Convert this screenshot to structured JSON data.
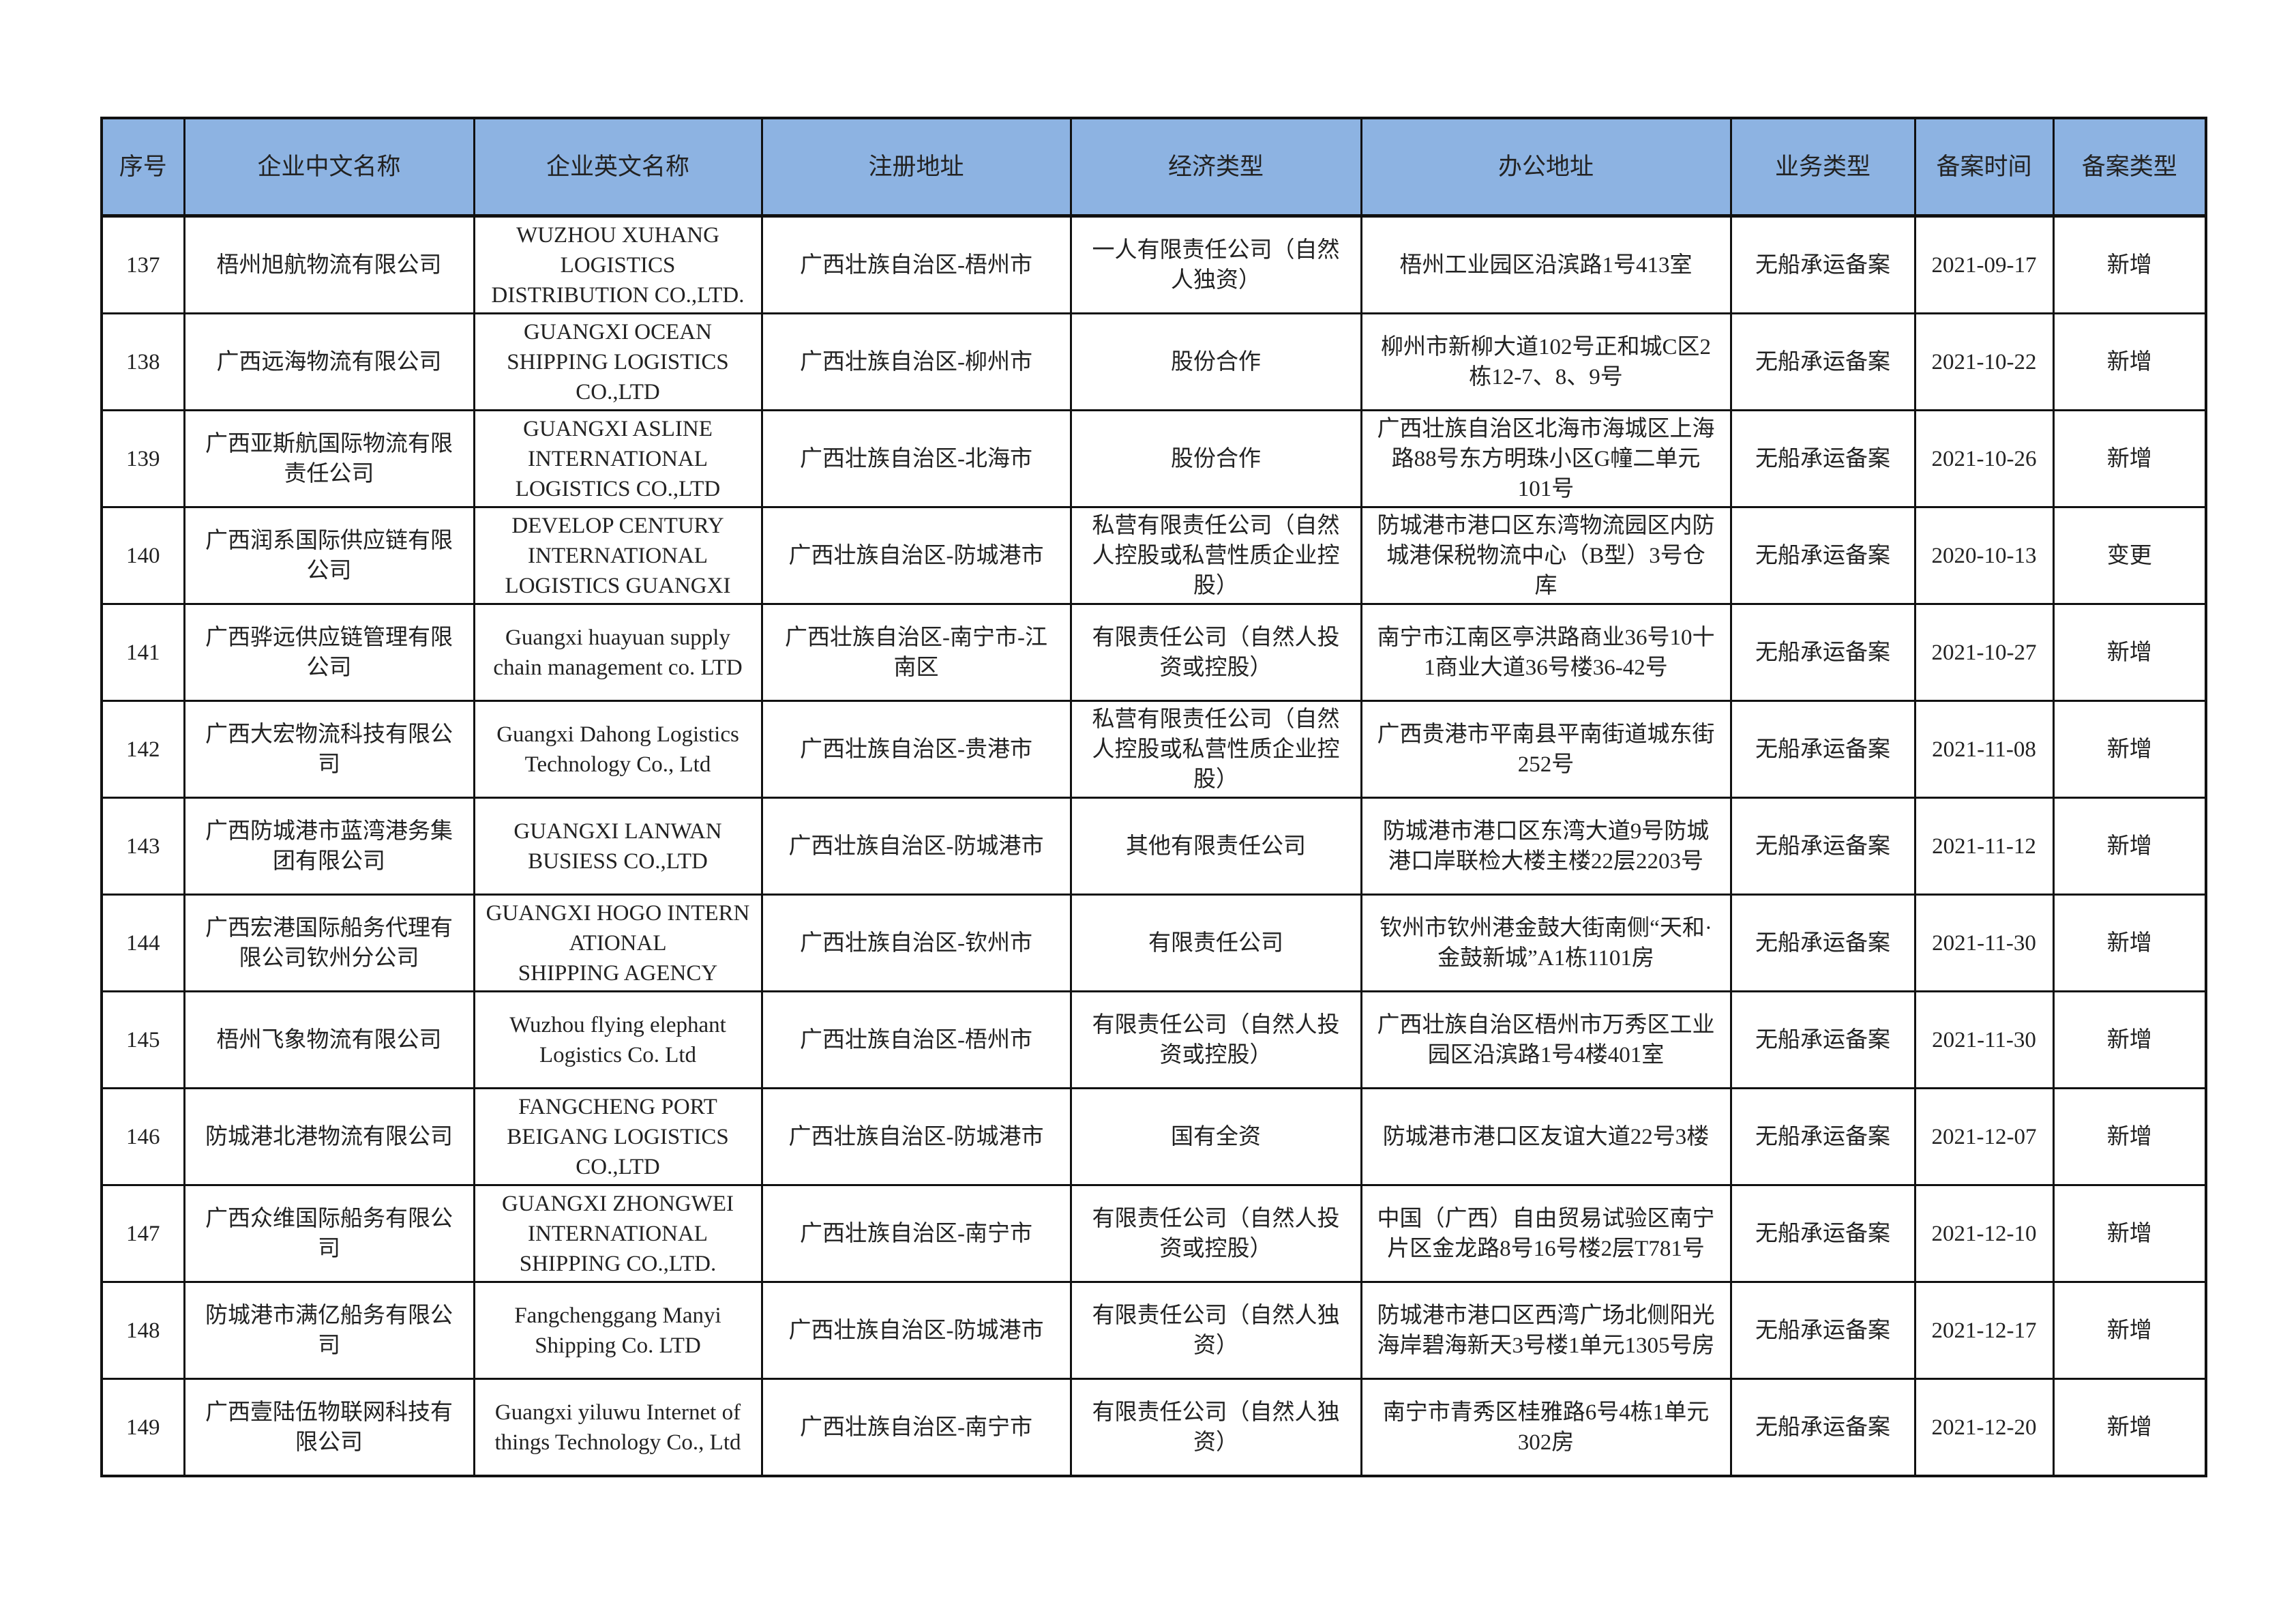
{
  "header_bg": "#8db3e2",
  "columns": [
    "序号",
    "企业中文名称",
    "企业英文名称",
    "注册地址",
    "经济类型",
    "办公地址",
    "业务类型",
    "备案时间",
    "备案类型"
  ],
  "rows": [
    [
      "137",
      "梧州旭航物流有限公司",
      "WUZHOU XUHANG\nLOGISTICS\nDISTRIBUTION CO.,LTD.",
      "广西壮族自治区-梧州市",
      "一人有限责任公司（自然\n人独资）",
      "梧州工业园区沿滨路1号413室",
      "无船承运备案",
      "2021-09-17",
      "新增"
    ],
    [
      "138",
      "广西远海物流有限公司",
      "GUANGXI OCEAN\nSHIPPING LOGISTICS\nCO.,LTD",
      "广西壮族自治区-柳州市",
      "股份合作",
      "柳州市新柳大道102号正和城C区2\n栋12-7、8、9号",
      "无船承运备案",
      "2021-10-22",
      "新增"
    ],
    [
      "139",
      "广西亚斯航国际物流有限\n责任公司",
      "GUANGXI ASLINE\nINTERNATIONAL\nLOGISTICS CO.,LTD",
      "广西壮族自治区-北海市",
      "股份合作",
      "广西壮族自治区北海市海城区上海\n路88号东方明珠小区G幢二单元\n101号",
      "无船承运备案",
      "2021-10-26",
      "新增"
    ],
    [
      "140",
      "广西润系国际供应链有限\n公司",
      "DEVELOP CENTURY\nINTERNATIONAL\nLOGISTICS GUANGXI",
      "广西壮族自治区-防城港市",
      "私营有限责任公司（自然\n人控股或私营性质企业控\n股）",
      "防城港市港口区东湾物流园区内防\n城港保税物流中心（B型）3号仓\n库",
      "无船承运备案",
      "2020-10-13",
      "变更"
    ],
    [
      "141",
      "广西骅远供应链管理有限\n公司",
      "Guangxi huayuan supply\nchain management co. LTD",
      "广西壮族自治区-南宁市-江\n南区",
      "有限责任公司（自然人投\n资或控股）",
      "南宁市江南区亭洪路商业36号10十\n1商业大道36号楼36-42号",
      "无船承运备案",
      "2021-10-27",
      "新增"
    ],
    [
      "142",
      "广西大宏物流科技有限公\n司",
      "Guangxi Dahong Logistics\nTechnology Co., Ltd",
      "广西壮族自治区-贵港市",
      "私营有限责任公司（自然\n人控股或私营性质企业控\n股）",
      "广西贵港市平南县平南街道城东街\n252号",
      "无船承运备案",
      "2021-11-08",
      "新增"
    ],
    [
      "143",
      "广西防城港市蓝湾港务集\n团有限公司",
      "GUANGXI LANWAN\nBUSIESS CO.,LTD",
      "广西壮族自治区-防城港市",
      "其他有限责任公司",
      "防城港市港口区东湾大道9号防城\n港口岸联检大楼主楼22层2203号",
      "无船承运备案",
      "2021-11-12",
      "新增"
    ],
    [
      "144",
      "广西宏港国际船务代理有\n限公司钦州分公司",
      "GUANGXI HOGO INTERN\nATIONAL\nSHIPPING AGENCY",
      "广西壮族自治区-钦州市",
      "有限责任公司",
      "钦州市钦州港金鼓大街南侧“天和·\n金鼓新城”A1栋1101房",
      "无船承运备案",
      "2021-11-30",
      "新增"
    ],
    [
      "145",
      "梧州飞象物流有限公司",
      "Wuzhou flying elephant\nLogistics Co. Ltd",
      "广西壮族自治区-梧州市",
      "有限责任公司（自然人投\n资或控股）",
      "广西壮族自治区梧州市万秀区工业\n园区沿滨路1号4楼401室",
      "无船承运备案",
      "2021-11-30",
      "新增"
    ],
    [
      "146",
      "防城港北港物流有限公司",
      "FANGCHENG PORT\nBEIGANG LOGISTICS\nCO.,LTD",
      "广西壮族自治区-防城港市",
      "国有全资",
      "防城港市港口区友谊大道22号3楼",
      "无船承运备案",
      "2021-12-07",
      "新增"
    ],
    [
      "147",
      "广西众维国际船务有限公\n司",
      "GUANGXI ZHONGWEI\nINTERNATIONAL\nSHIPPING CO.,LTD.",
      "广西壮族自治区-南宁市",
      "有限责任公司（自然人投\n资或控股）",
      "中国（广西）自由贸易试验区南宁\n片区金龙路8号16号楼2层T781号",
      "无船承运备案",
      "2021-12-10",
      "新增"
    ],
    [
      "148",
      "防城港市满亿船务有限公\n司",
      "Fangchenggang Manyi\nShipping Co. LTD",
      "广西壮族自治区-防城港市",
      "有限责任公司（自然人独\n资）",
      "防城港市港口区西湾广场北侧阳光\n海岸碧海新天3号楼1单元1305号房",
      "无船承运备案",
      "2021-12-17",
      "新增"
    ],
    [
      "149",
      "广西壹陆伍物联网科技有\n限公司",
      "Guangxi yiluwu Internet of\nthings Technology Co., Ltd",
      "广西壮族自治区-南宁市",
      "有限责任公司（自然人独\n资）",
      "南宁市青秀区桂雅路6号4栋1单元\n302房",
      "无船承运备案",
      "2021-12-20",
      "新增"
    ]
  ]
}
